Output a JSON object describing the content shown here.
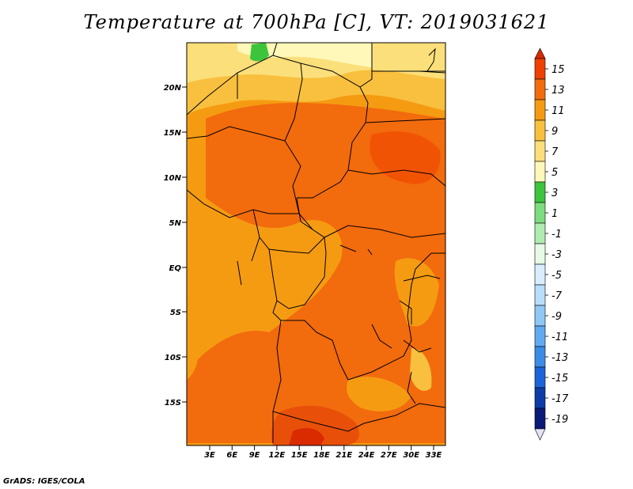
{
  "title": "Temperature at 700hPa [C], VT: 2019031621",
  "footer": "GrADS: IGES/COLA",
  "map": {
    "lat_labels": [
      "20N",
      "15N",
      "10N",
      "5N",
      "EQ",
      "5S",
      "10S",
      "15S"
    ],
    "lon_labels": [
      "3E",
      "6E",
      "9E",
      "12E",
      "15E",
      "18E",
      "21E",
      "24E",
      "27E",
      "30E",
      "33E"
    ]
  },
  "colorbar": {
    "levels": [
      "15",
      "13",
      "11",
      "9",
      "7",
      "5",
      "3",
      "1",
      "-1",
      "-3",
      "-5",
      "-7",
      "-9",
      "-11",
      "-13",
      "-15",
      "-17",
      "-19"
    ],
    "colors": [
      "#d92a00",
      "#f04000",
      "#f26b0d",
      "#f59b12",
      "#f8c03e",
      "#fbdf7a",
      "#fff8b8",
      "#3cc43c",
      "#7ddc7d",
      "#b0ecb0",
      "#e6fae6",
      "#d8eefe",
      "#b8defa",
      "#90c8f5",
      "#62aaf0",
      "#3a8ce6",
      "#1c64d8",
      "#0c3ca8",
      "#0a1a78",
      "#e3e3f8"
    ]
  }
}
